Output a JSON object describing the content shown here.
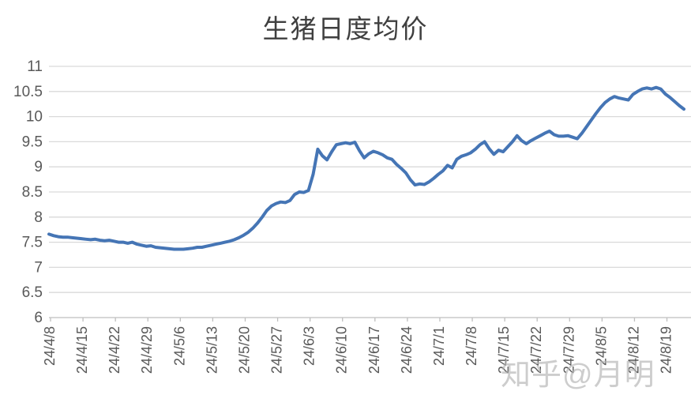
{
  "header": {
    "title": "生猪日度均价"
  },
  "watermark": {
    "text": "知乎@月明"
  },
  "colors": {
    "line": "#4575B5",
    "grid": "#D9D9D9",
    "axis": "#BFBFBF",
    "tick_text": "#595959",
    "title_text": "#3F3F3F",
    "background": "#FFFFFF"
  },
  "chart_data": {
    "type": "line",
    "title": "生猪日度均价",
    "xlabel": "",
    "ylabel": "",
    "legend": "none",
    "grid": "horizontal gridlines every 0.5",
    "ylim": [
      6,
      11
    ],
    "y_ticks": [
      6,
      6.5,
      7,
      7.5,
      8,
      8.5,
      9,
      9.5,
      10,
      10.5,
      11
    ],
    "x_tick_labels": [
      "24/4/8",
      "24/4/15",
      "24/4/22",
      "24/4/29",
      "24/5/6",
      "24/5/13",
      "24/5/20",
      "24/5/27",
      "24/6/3",
      "24/6/10",
      "24/6/17",
      "24/6/24",
      "24/7/1",
      "24/7/8",
      "24/7/15",
      "24/7/22",
      "24/7/29",
      "24/8/5",
      "24/8/12",
      "24/8/19"
    ],
    "x_label_every_n_points": 7,
    "series": [
      {
        "name": "生猪日度均价",
        "frequency": "daily",
        "values": [
          7.66,
          7.63,
          7.61,
          7.6,
          7.6,
          7.59,
          7.58,
          7.57,
          7.56,
          7.55,
          7.56,
          7.54,
          7.53,
          7.54,
          7.52,
          7.5,
          7.5,
          7.48,
          7.5,
          7.46,
          7.44,
          7.42,
          7.43,
          7.4,
          7.39,
          7.38,
          7.37,
          7.36,
          7.36,
          7.36,
          7.37,
          7.38,
          7.4,
          7.4,
          7.42,
          7.44,
          7.46,
          7.48,
          7.5,
          7.52,
          7.55,
          7.59,
          7.64,
          7.7,
          7.78,
          7.88,
          8.0,
          8.13,
          8.22,
          8.27,
          8.3,
          8.29,
          8.33,
          8.45,
          8.5,
          8.49,
          8.53,
          8.85,
          9.35,
          9.22,
          9.14,
          9.3,
          9.44,
          9.46,
          9.48,
          9.46,
          9.49,
          9.32,
          9.18,
          9.26,
          9.31,
          9.28,
          9.24,
          9.18,
          9.15,
          9.05,
          8.97,
          8.88,
          8.74,
          8.64,
          8.66,
          8.65,
          8.7,
          8.77,
          8.85,
          8.92,
          9.03,
          8.98,
          9.15,
          9.21,
          9.24,
          9.28,
          9.35,
          9.44,
          9.5,
          9.36,
          9.25,
          9.33,
          9.3,
          9.4,
          9.5,
          9.62,
          9.52,
          9.46,
          9.52,
          9.57,
          9.62,
          9.67,
          9.71,
          9.64,
          9.61,
          9.61,
          9.62,
          9.59,
          9.56,
          9.67,
          9.8,
          9.93,
          10.06,
          10.18,
          10.28,
          10.35,
          10.4,
          10.37,
          10.35,
          10.33,
          10.44,
          10.5,
          10.55,
          10.57,
          10.55,
          10.58,
          10.55,
          10.45,
          10.38,
          10.3,
          10.22,
          10.15
        ]
      }
    ]
  }
}
